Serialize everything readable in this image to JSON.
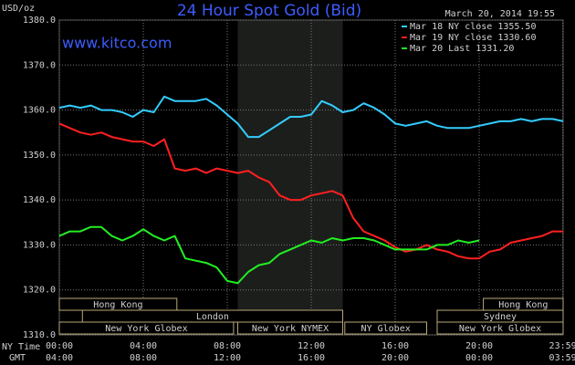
{
  "chart_data": {
    "type": "line",
    "title": "24 Hour Spot Gold (Bid)",
    "y_unit": "USD/oz",
    "timestamp": "March 20, 2014 19:55",
    "watermark": "www.kitco.com",
    "x_row_label": "NY Time",
    "x2_row_label": "GMT",
    "x": [
      0,
      0.5,
      1,
      1.5,
      2,
      2.5,
      3,
      3.5,
      4,
      4.5,
      5,
      5.5,
      6,
      6.5,
      7,
      7.5,
      8,
      8.5,
      9,
      9.5,
      10,
      10.5,
      11,
      11.5,
      12,
      12.5,
      13,
      13.5,
      14,
      14.5,
      15,
      15.5,
      16,
      16.5,
      17,
      17.5,
      18,
      18.5,
      19,
      19.5,
      20,
      20.5,
      21,
      21.5,
      22,
      22.5,
      23,
      23.5,
      24
    ],
    "series": [
      {
        "name": "Mar 18 NY close 1355.50",
        "color": "#33ccff",
        "values": [
          1360.5,
          1361,
          1360.5,
          1361,
          1360,
          1360,
          1359.5,
          1358.5,
          1360,
          1359.5,
          1363,
          1362,
          1362,
          1362,
          1362.5,
          1361,
          1359,
          1357,
          1354,
          1354,
          1355.5,
          1357,
          1358.5,
          1358.5,
          1359,
          1362,
          1361,
          1359.5,
          1360,
          1361.5,
          1360.5,
          1359,
          1357,
          1356.5,
          1357,
          1357.5,
          1356.5,
          1356,
          1356,
          1356,
          1356.5,
          1357,
          1357.5,
          1357.5,
          1358,
          1357.5,
          1358,
          1358,
          1357.5
        ]
      },
      {
        "name": "Mar 19 NY close 1330.60",
        "color": "#ff2020",
        "values": [
          1357,
          1356,
          1355,
          1354.5,
          1355,
          1354,
          1353.5,
          1353,
          1353,
          1352,
          1353.5,
          1347,
          1346.5,
          1347,
          1346,
          1347,
          1346.5,
          1346,
          1346.5,
          1345,
          1344,
          1341,
          1340,
          1340,
          1341,
          1341.5,
          1342,
          1341,
          1336,
          1333,
          1332,
          1331,
          1329.5,
          1328.5,
          1329,
          1330,
          1329,
          1328.5,
          1327.5,
          1327,
          1327,
          1328.5,
          1329,
          1330.5,
          1331,
          1331.5,
          1332,
          1333,
          1333
        ]
      },
      {
        "name": "Mar 20 Last 1331.20",
        "color": "#22ee22",
        "values": [
          1332,
          1333,
          1333,
          1334,
          1334,
          1332,
          1331,
          1332,
          1333.5,
          1332,
          1331,
          1332,
          1327,
          1326.5,
          1326,
          1325,
          1322,
          1321.5,
          1324,
          1325.5,
          1326,
          1328,
          1329,
          1330,
          1331,
          1330.5,
          1331.5,
          1331,
          1331.5,
          1331.5,
          1331,
          1330,
          1329,
          1329,
          1329,
          1329,
          1330,
          1330,
          1331,
          1330.5,
          1331,
          null,
          null,
          null,
          null,
          null,
          null,
          null,
          null
        ]
      }
    ],
    "xlim": [
      0,
      24
    ],
    "xticks": [
      {
        "value": 0,
        "label": "00:00"
      },
      {
        "value": 4,
        "label": "04:00"
      },
      {
        "value": 8,
        "label": "08:00"
      },
      {
        "value": 12,
        "label": "12:00"
      },
      {
        "value": 16,
        "label": "16:00"
      },
      {
        "value": 20,
        "label": "20:00"
      },
      {
        "value": 23.983,
        "label": "23:59"
      }
    ],
    "x2_labels": [
      "04:00",
      "08:00",
      "12:00",
      "16:00",
      "20:00",
      "00:00",
      "03:59"
    ],
    "ylim": [
      1310,
      1380
    ],
    "yticks": [
      {
        "value": 1310,
        "label": "1310.0"
      },
      {
        "value": 1320,
        "label": "1320.0"
      },
      {
        "value": 1330,
        "label": "1330.0"
      },
      {
        "value": 1340,
        "label": "1340.0"
      },
      {
        "value": 1350,
        "label": "1350.0"
      },
      {
        "value": 1360,
        "label": "1360.0"
      },
      {
        "value": 1370,
        "label": "1370.0"
      },
      {
        "value": 1380,
        "label": "1380.0"
      }
    ],
    "grid": true,
    "highlight": [
      8.5,
      13.5
    ],
    "session_rows": [
      [
        {
          "label": "Hong Kong",
          "start": 0,
          "end": 5.6
        },
        {
          "label": "Hong Kong",
          "start": 20.2,
          "end": 24
        }
      ],
      [
        {
          "label": "London",
          "start": 1.1,
          "end": 13.5
        },
        {
          "label": "Sydney",
          "start": 18,
          "end": 24
        }
      ],
      [
        {
          "label": "New York Globex",
          "start": 0,
          "end": 8.3
        },
        {
          "label": "New York NYMEX",
          "start": 8.5,
          "end": 13.5
        },
        {
          "label": "NY Globex",
          "start": 13.6,
          "end": 17.5
        },
        {
          "label": "New York Globex",
          "start": 18,
          "end": 24
        }
      ]
    ]
  }
}
